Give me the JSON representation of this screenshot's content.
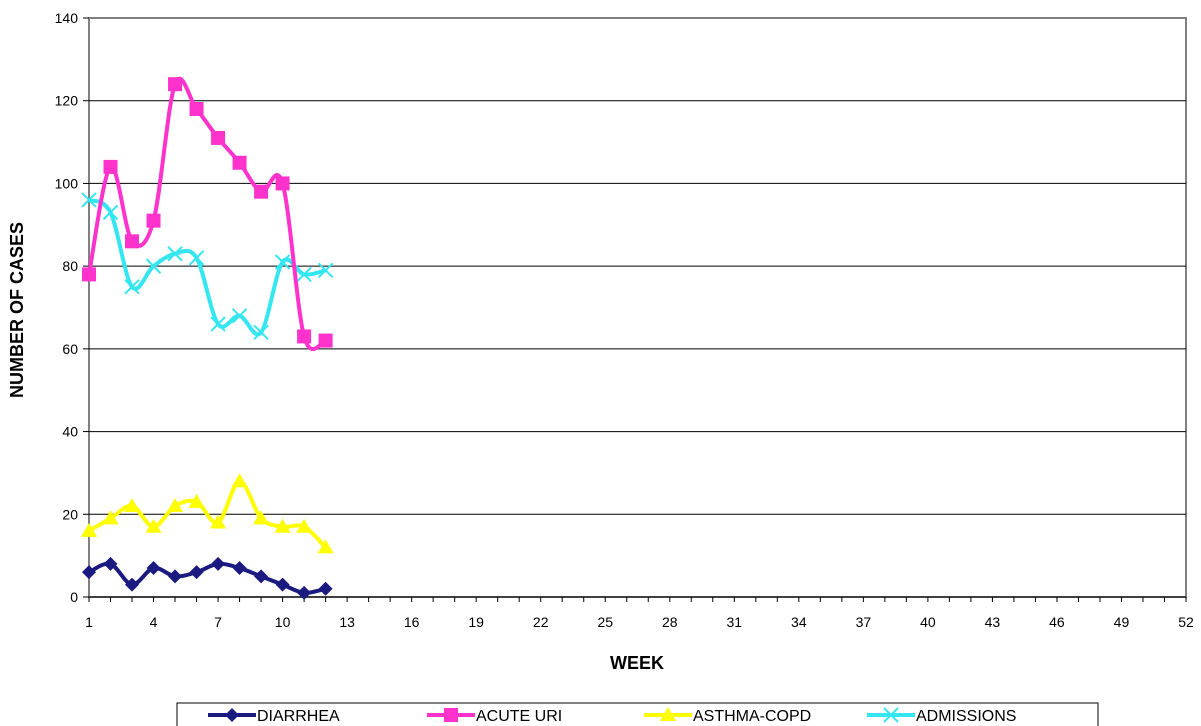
{
  "chart_data": {
    "type": "line",
    "title": "",
    "xlabel": "WEEK",
    "ylabel": "NUMBER OF CASES",
    "xlim": [
      1,
      52
    ],
    "ylim": [
      0,
      140
    ],
    "y_ticks": [
      0,
      20,
      40,
      60,
      80,
      100,
      120,
      140
    ],
    "x_ticks": [
      1,
      4,
      7,
      10,
      13,
      16,
      19,
      22,
      25,
      28,
      31,
      34,
      37,
      40,
      43,
      46,
      49,
      52
    ],
    "grid": "horizontal",
    "legend_position": "bottom",
    "x": [
      1,
      2,
      3,
      4,
      5,
      6,
      7,
      8,
      9,
      10,
      11,
      12
    ],
    "series": [
      {
        "name": "DIARRHEA",
        "color": "#1a1a80",
        "marker": "diamond",
        "values": [
          6,
          8,
          3,
          7,
          5,
          6,
          8,
          7,
          5,
          3,
          1,
          2
        ]
      },
      {
        "name": "ACUTE URI",
        "color": "#ff33cc",
        "marker": "square",
        "values": [
          78,
          104,
          86,
          91,
          124,
          118,
          111,
          105,
          98,
          100,
          63,
          62
        ]
      },
      {
        "name": "ASTHMA-COPD",
        "color": "#ffff00",
        "marker": "triangle",
        "values": [
          16,
          19,
          22,
          17,
          22,
          23,
          18,
          28,
          19,
          17,
          17,
          12
        ]
      },
      {
        "name": "ADMISSIONS",
        "color": "#33e6f0",
        "marker": "x",
        "values": [
          96,
          93,
          75,
          80,
          83,
          82,
          66,
          68,
          64,
          81,
          78,
          79
        ]
      }
    ]
  }
}
